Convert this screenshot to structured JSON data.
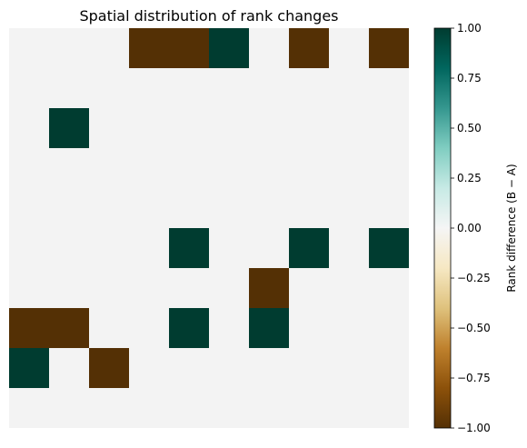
{
  "chart_data": {
    "type": "heatmap",
    "title": "Spatial distribution of rank changes",
    "xlabel": "",
    "ylabel": "",
    "rows": 10,
    "cols": 10,
    "values": [
      [
        0,
        0,
        0,
        -1,
        -1,
        1,
        0,
        -1,
        0,
        -1
      ],
      [
        0,
        0,
        0,
        0,
        0,
        0,
        0,
        0,
        0,
        0
      ],
      [
        0,
        1,
        0,
        0,
        0,
        0,
        0,
        0,
        0,
        0
      ],
      [
        0,
        0,
        0,
        0,
        0,
        0,
        0,
        0,
        0,
        0
      ],
      [
        0,
        0,
        0,
        0,
        0,
        0,
        0,
        0,
        0,
        0
      ],
      [
        0,
        0,
        0,
        0,
        1,
        0,
        0,
        1,
        0,
        1
      ],
      [
        0,
        0,
        0,
        0,
        0,
        0,
        -1,
        0,
        0,
        0
      ],
      [
        -1,
        -1,
        0,
        0,
        1,
        0,
        1,
        0,
        0,
        0
      ],
      [
        1,
        0,
        -1,
        0,
        0,
        0,
        0,
        0,
        0,
        0
      ],
      [
        0,
        0,
        0,
        0,
        0,
        0,
        0,
        0,
        0,
        0
      ]
    ],
    "colors": {
      "negative": "#543005",
      "zero": "#f3f3f3",
      "positive": "#003c30"
    },
    "colorbar": {
      "label": "Rank difference (B − A)",
      "range": [
        -1.0,
        1.0
      ],
      "ticks": [
        "1.00",
        "0.75",
        "0.50",
        "0.25",
        "0.00",
        "−0.25",
        "−0.50",
        "−0.75",
        "−1.00"
      ],
      "tick_values": [
        1.0,
        0.75,
        0.5,
        0.25,
        0.0,
        -0.25,
        -0.5,
        -0.75,
        -1.0
      ],
      "colormap": "BrBG",
      "stops": [
        "#543005",
        "#8c510a",
        "#bf812d",
        "#dfc27d",
        "#f6e8c3",
        "#f5f5f5",
        "#c7eae5",
        "#80cdc1",
        "#35978f",
        "#01665e",
        "#003c30"
      ]
    },
    "grid": false,
    "legend": "colorbar-right"
  }
}
